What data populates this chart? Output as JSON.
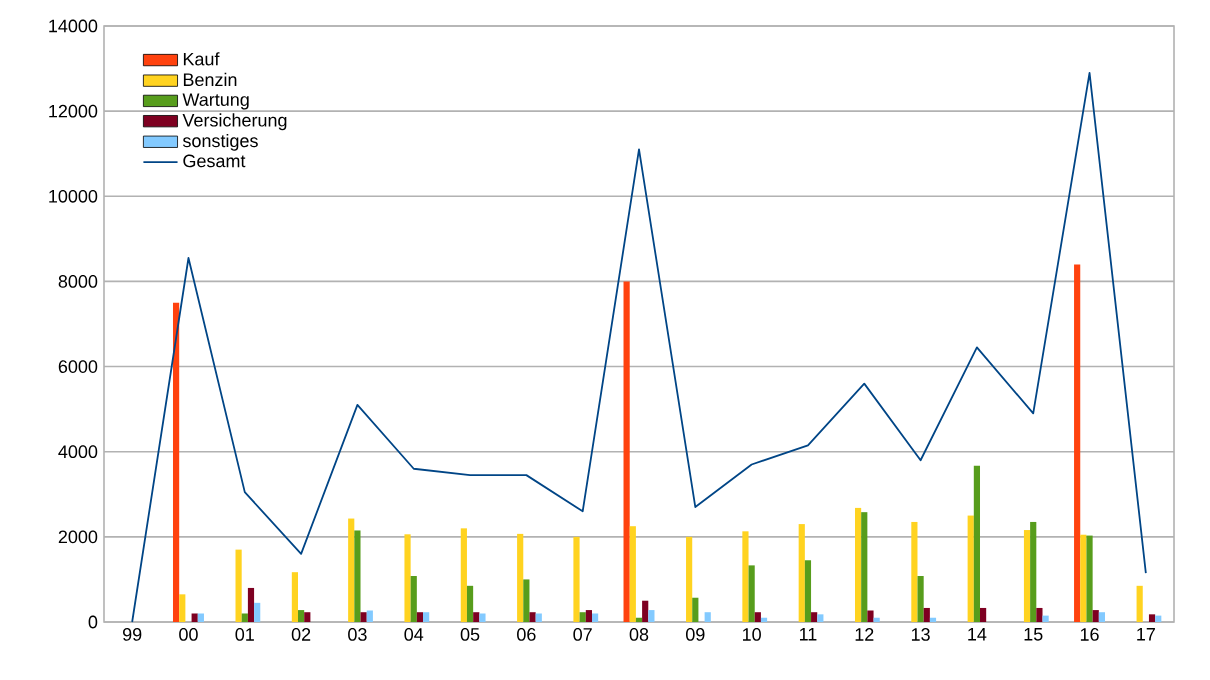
{
  "chart_data": {
    "type": "bar",
    "categories": [
      "99",
      "00",
      "01",
      "02",
      "03",
      "04",
      "05",
      "06",
      "07",
      "08",
      "09",
      "10",
      "11",
      "12",
      "13",
      "14",
      "15",
      "16",
      "17"
    ],
    "series": [
      {
        "name": "Kauf",
        "color": "#ff420e",
        "values": [
          0,
          7500,
          0,
          0,
          0,
          0,
          0,
          0,
          0,
          8000,
          0,
          0,
          0,
          0,
          0,
          0,
          0,
          8400,
          0
        ]
      },
      {
        "name": "Benzin",
        "color": "#ffd320",
        "values": [
          0,
          650,
          1700,
          1170,
          2430,
          2060,
          2200,
          2070,
          2000,
          2250,
          2000,
          2130,
          2300,
          2680,
          2350,
          2500,
          2160,
          2050,
          850
        ]
      },
      {
        "name": "Wartung",
        "color": "#579d1c",
        "values": [
          0,
          0,
          200,
          280,
          2150,
          1080,
          850,
          1000,
          230,
          100,
          570,
          1330,
          1450,
          2580,
          1080,
          3670,
          2350,
          2030,
          0
        ]
      },
      {
        "name": "Versicherung",
        "color": "#7e0021",
        "values": [
          0,
          200,
          800,
          230,
          230,
          230,
          230,
          230,
          280,
          500,
          0,
          230,
          230,
          270,
          330,
          330,
          330,
          280,
          180
        ]
      },
      {
        "name": "sonstiges",
        "color": "#83caff",
        "values": [
          0,
          200,
          450,
          0,
          270,
          230,
          200,
          200,
          200,
          280,
          230,
          100,
          180,
          100,
          100,
          0,
          150,
          230,
          150
        ]
      },
      {
        "name": "Gesamt",
        "color": "#004586",
        "type": "line",
        "values": [
          0,
          8550,
          3050,
          1600,
          5100,
          3600,
          3450,
          3450,
          2600,
          11100,
          2700,
          3700,
          4150,
          5600,
          3800,
          6450,
          4900,
          12900,
          1150
        ]
      }
    ],
    "ylim": [
      0,
      14000
    ],
    "yticks": [
      0,
      2000,
      4000,
      6000,
      8000,
      10000,
      12000,
      14000
    ],
    "grid": "y",
    "legend": "top left",
    "marker": "none"
  }
}
